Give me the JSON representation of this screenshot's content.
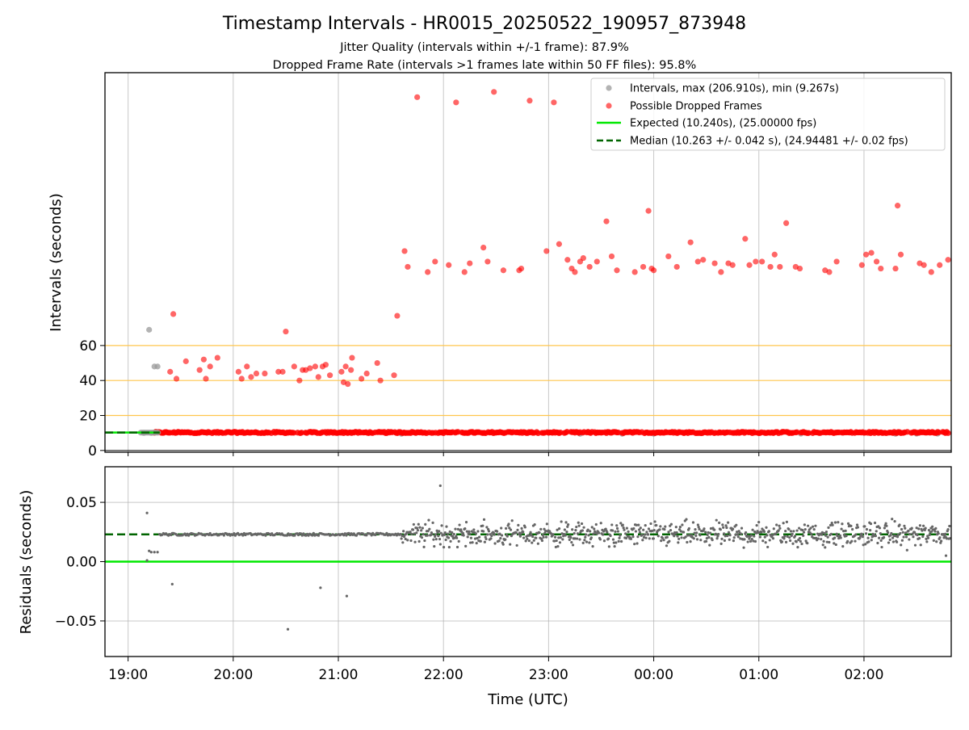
{
  "chart_data": {
    "type": "scatter",
    "title": "Timestamp Intervals - HR0015_20250522_190957_873948",
    "subtitle_lines": [
      "Jitter Quality (intervals within +/-1 frame): 87.9%",
      "Dropped Frame Rate (intervals >1 frames late within 50 FF files): 95.8%"
    ],
    "xlabel": "Time (UTC)",
    "x_ticks": [
      "19:00",
      "20:00",
      "21:00",
      "22:00",
      "23:00",
      "00:00",
      "01:00",
      "02:00"
    ],
    "xlim_hours": [
      18.78,
      26.83
    ],
    "grid": true,
    "colors": {
      "intervals": "#999999",
      "dropped": "#ff0000",
      "expected": "#00e800",
      "median": "#006400",
      "reference_lines": "#ffc64d",
      "residual_points": "#666666"
    },
    "top_panel": {
      "ylabel": "Intervals (seconds)",
      "y_ticks": [
        0,
        20,
        40,
        60
      ],
      "ylim": [
        -1,
        216
      ],
      "reference_lines": [
        20,
        40,
        60
      ],
      "expected_interval": 10.24,
      "median_interval": 10.263,
      "legend_position": "top-right",
      "legend": {
        "intervals": "Intervals, max (206.910s), min (9.267s)",
        "dropped": "Possible Dropped Frames",
        "expected": "Expected (10.240s), (25.00000 fps)",
        "median": "Median (10.263 +/- 0.042 s), (24.94481 +/- 0.02 fps)"
      },
      "intervals_points": [
        [
          19.2,
          69
        ],
        [
          19.25,
          48
        ],
        [
          19.28,
          48
        ],
        [
          19.22,
          10
        ],
        [
          19.15,
          10
        ],
        [
          21.6,
          9.5
        ],
        [
          23.3,
          9.5
        ],
        [
          23.7,
          9.5
        ],
        [
          24.0,
          9.5
        ],
        [
          25.4,
          9.6
        ],
        [
          26.3,
          9.5
        ],
        [
          26.5,
          9.6
        ],
        [
          26.7,
          9.6
        ]
      ],
      "dropped_points": [
        [
          19.43,
          78
        ],
        [
          19.4,
          45
        ],
        [
          19.46,
          41
        ],
        [
          19.55,
          51
        ],
        [
          19.68,
          46
        ],
        [
          19.72,
          52
        ],
        [
          19.74,
          41
        ],
        [
          19.78,
          48
        ],
        [
          19.85,
          53
        ],
        [
          20.05,
          45
        ],
        [
          20.08,
          41
        ],
        [
          20.13,
          48
        ],
        [
          20.17,
          42
        ],
        [
          20.22,
          44
        ],
        [
          20.3,
          44
        ],
        [
          20.43,
          45
        ],
        [
          20.47,
          45
        ],
        [
          20.5,
          68
        ],
        [
          20.58,
          48
        ],
        [
          20.63,
          40
        ],
        [
          20.66,
          46
        ],
        [
          20.69,
          46
        ],
        [
          20.73,
          47
        ],
        [
          20.78,
          48
        ],
        [
          20.81,
          42
        ],
        [
          20.85,
          48
        ],
        [
          20.88,
          49
        ],
        [
          20.92,
          43
        ],
        [
          21.03,
          45
        ],
        [
          21.05,
          39
        ],
        [
          21.07,
          48
        ],
        [
          21.09,
          38
        ],
        [
          21.12,
          46
        ],
        [
          21.13,
          53
        ],
        [
          21.22,
          41
        ],
        [
          21.27,
          44
        ],
        [
          21.37,
          50
        ],
        [
          21.4,
          40
        ],
        [
          21.53,
          43
        ],
        [
          21.56,
          77
        ],
        [
          21.63,
          114
        ],
        [
          21.66,
          105
        ],
        [
          21.75,
          202
        ],
        [
          21.85,
          102
        ],
        [
          21.92,
          108
        ],
        [
          22.05,
          106
        ],
        [
          22.12,
          199
        ],
        [
          22.2,
          102
        ],
        [
          22.25,
          107
        ],
        [
          22.38,
          116
        ],
        [
          22.42,
          108
        ],
        [
          22.48,
          205
        ],
        [
          22.57,
          103
        ],
        [
          22.72,
          103
        ],
        [
          22.74,
          104
        ],
        [
          22.82,
          200
        ],
        [
          23.05,
          199
        ],
        [
          22.98,
          114
        ],
        [
          23.1,
          118
        ],
        [
          23.18,
          109
        ],
        [
          23.22,
          104
        ],
        [
          23.25,
          102
        ],
        [
          23.3,
          108
        ],
        [
          23.33,
          110
        ],
        [
          23.39,
          105
        ],
        [
          23.46,
          108
        ],
        [
          23.55,
          131
        ],
        [
          23.6,
          111
        ],
        [
          23.65,
          103
        ],
        [
          23.82,
          102
        ],
        [
          23.9,
          105
        ],
        [
          23.95,
          137
        ],
        [
          23.98,
          104
        ],
        [
          24.0,
          103
        ],
        [
          24.14,
          111
        ],
        [
          24.22,
          105
        ],
        [
          24.35,
          119
        ],
        [
          24.42,
          108
        ],
        [
          24.47,
          109
        ],
        [
          24.58,
          107
        ],
        [
          24.64,
          102
        ],
        [
          24.71,
          107
        ],
        [
          24.75,
          106
        ],
        [
          24.87,
          121
        ],
        [
          24.91,
          106
        ],
        [
          24.97,
          108
        ],
        [
          25.03,
          108
        ],
        [
          25.11,
          105
        ],
        [
          25.15,
          112
        ],
        [
          25.2,
          105
        ],
        [
          25.26,
          130
        ],
        [
          25.35,
          105
        ],
        [
          25.39,
          104
        ],
        [
          25.63,
          103
        ],
        [
          25.67,
          102
        ],
        [
          25.74,
          108
        ],
        [
          25.98,
          106
        ],
        [
          26.02,
          112
        ],
        [
          26.07,
          113
        ],
        [
          26.12,
          108
        ],
        [
          26.16,
          104
        ],
        [
          26.3,
          104
        ],
        [
          26.32,
          140
        ],
        [
          26.35,
          112
        ],
        [
          26.53,
          107
        ],
        [
          26.57,
          106
        ],
        [
          26.64,
          102
        ],
        [
          26.72,
          106
        ],
        [
          26.8,
          109
        ]
      ]
    },
    "bottom_panel": {
      "ylabel": "Residuals (seconds)",
      "y_ticks": [
        -0.05,
        0.0,
        0.05
      ],
      "y_tick_labels": [
        "−0.05",
        "0.00",
        "0.05"
      ],
      "ylim": [
        -0.08,
        0.08
      ],
      "median_residual": 0.023,
      "outliers": [
        [
          19.18,
          0.041
        ],
        [
          19.18,
          0.001
        ],
        [
          19.2,
          0.009
        ],
        [
          19.22,
          0.008
        ],
        [
          19.25,
          0.008
        ],
        [
          19.28,
          0.008
        ],
        [
          19.42,
          -0.019
        ],
        [
          20.52,
          -0.057
        ],
        [
          20.83,
          -0.022
        ],
        [
          21.08,
          -0.029
        ],
        [
          21.97,
          0.064
        ],
        [
          26.78,
          0.005
        ]
      ],
      "scatter_band": {
        "start_hours": 21.6,
        "end_hours": 26.83,
        "center": 0.023,
        "spread": 0.011
      }
    }
  }
}
